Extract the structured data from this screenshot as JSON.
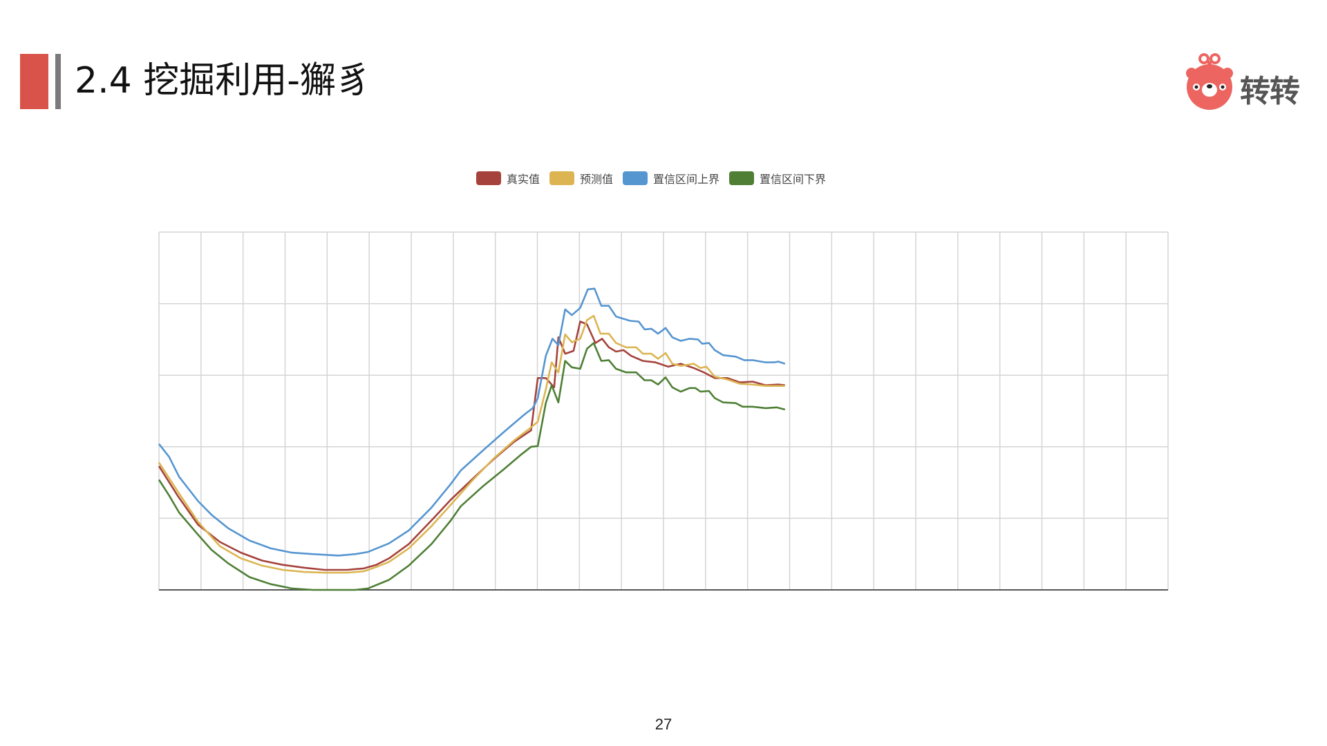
{
  "slide": {
    "title": "2.4 挖掘利用-獬豸",
    "logo_text": "转转",
    "page_number": "27",
    "accent_color": "#d9534a"
  },
  "chart_data": {
    "type": "line",
    "title": "",
    "xlabel": "",
    "ylabel": "",
    "xlim": [
      0,
      24
    ],
    "ylim": [
      0,
      5
    ],
    "grid": true,
    "x_gridlines": 24,
    "y_gridlines": 5,
    "tick_labels_shown": false,
    "legend_position": "top-center",
    "series": [
      {
        "name": "真实值",
        "color": "#a5423b",
        "points": [
          [
            0,
            1.73
          ],
          [
            0.44,
            1.32
          ],
          [
            0.93,
            0.91
          ],
          [
            1.45,
            0.67
          ],
          [
            1.95,
            0.52
          ],
          [
            2.45,
            0.41
          ],
          [
            2.94,
            0.35
          ],
          [
            3.46,
            0.31
          ],
          [
            3.94,
            0.28
          ],
          [
            4.47,
            0.28
          ],
          [
            4.87,
            0.3
          ],
          [
            5.17,
            0.35
          ],
          [
            5.47,
            0.44
          ],
          [
            5.94,
            0.64
          ],
          [
            6.48,
            0.97
          ],
          [
            6.94,
            1.26
          ],
          [
            7.44,
            1.54
          ],
          [
            7.95,
            1.82
          ],
          [
            8.45,
            2.07
          ],
          [
            8.85,
            2.23
          ],
          [
            9.01,
            2.96
          ],
          [
            9.2,
            2.96
          ],
          [
            9.4,
            2.83
          ],
          [
            9.5,
            3.53
          ],
          [
            9.66,
            3.3
          ],
          [
            9.86,
            3.34
          ],
          [
            10.02,
            3.75
          ],
          [
            10.18,
            3.71
          ],
          [
            10.38,
            3.45
          ],
          [
            10.54,
            3.51
          ],
          [
            10.7,
            3.39
          ],
          [
            10.87,
            3.33
          ],
          [
            11.05,
            3.35
          ],
          [
            11.23,
            3.27
          ],
          [
            11.51,
            3.2
          ],
          [
            11.81,
            3.18
          ],
          [
            12.11,
            3.12
          ],
          [
            12.41,
            3.16
          ],
          [
            12.72,
            3.1
          ],
          [
            12.96,
            3.04
          ],
          [
            13.22,
            2.96
          ],
          [
            13.52,
            2.96
          ],
          [
            13.82,
            2.9
          ],
          [
            14.12,
            2.91
          ],
          [
            14.43,
            2.86
          ],
          [
            14.73,
            2.87
          ],
          [
            14.89,
            2.86
          ]
        ]
      },
      {
        "name": "预测值",
        "color": "#dcb552",
        "points": [
          [
            0,
            1.78
          ],
          [
            0.44,
            1.38
          ],
          [
            0.93,
            0.95
          ],
          [
            1.45,
            0.61
          ],
          [
            1.95,
            0.44
          ],
          [
            2.45,
            0.34
          ],
          [
            2.94,
            0.28
          ],
          [
            3.46,
            0.25
          ],
          [
            3.94,
            0.24
          ],
          [
            4.47,
            0.24
          ],
          [
            4.87,
            0.26
          ],
          [
            5.17,
            0.32
          ],
          [
            5.47,
            0.39
          ],
          [
            5.94,
            0.58
          ],
          [
            6.48,
            0.89
          ],
          [
            6.94,
            1.19
          ],
          [
            7.44,
            1.52
          ],
          [
            7.95,
            1.83
          ],
          [
            8.45,
            2.09
          ],
          [
            8.85,
            2.27
          ],
          [
            9.01,
            2.35
          ],
          [
            9.2,
            2.8
          ],
          [
            9.34,
            3.18
          ],
          [
            9.5,
            3.04
          ],
          [
            9.66,
            3.57
          ],
          [
            9.82,
            3.46
          ],
          [
            10.02,
            3.51
          ],
          [
            10.18,
            3.77
          ],
          [
            10.34,
            3.83
          ],
          [
            10.5,
            3.58
          ],
          [
            10.7,
            3.58
          ],
          [
            10.87,
            3.45
          ],
          [
            11.11,
            3.39
          ],
          [
            11.35,
            3.39
          ],
          [
            11.51,
            3.3
          ],
          [
            11.71,
            3.3
          ],
          [
            11.87,
            3.23
          ],
          [
            12.05,
            3.31
          ],
          [
            12.21,
            3.16
          ],
          [
            12.41,
            3.13
          ],
          [
            12.72,
            3.16
          ],
          [
            12.88,
            3.1
          ],
          [
            13.02,
            3.12
          ],
          [
            13.22,
            2.98
          ],
          [
            13.52,
            2.94
          ],
          [
            13.82,
            2.88
          ],
          [
            14.12,
            2.87
          ],
          [
            14.43,
            2.85
          ],
          [
            14.89,
            2.85
          ]
        ]
      },
      {
        "name": "置信区间上界",
        "color": "#5595d0",
        "points": [
          [
            0,
            2.04
          ],
          [
            0.24,
            1.86
          ],
          [
            0.48,
            1.58
          ],
          [
            0.93,
            1.24
          ],
          [
            1.25,
            1.05
          ],
          [
            1.65,
            0.86
          ],
          [
            2.15,
            0.69
          ],
          [
            2.66,
            0.58
          ],
          [
            3.16,
            0.52
          ],
          [
            3.66,
            0.5
          ],
          [
            4.27,
            0.48
          ],
          [
            4.67,
            0.5
          ],
          [
            4.97,
            0.53
          ],
          [
            5.47,
            0.65
          ],
          [
            5.94,
            0.83
          ],
          [
            6.48,
            1.15
          ],
          [
            6.94,
            1.48
          ],
          [
            7.18,
            1.67
          ],
          [
            7.69,
            1.94
          ],
          [
            8.19,
            2.2
          ],
          [
            8.69,
            2.45
          ],
          [
            8.89,
            2.54
          ],
          [
            9.01,
            2.68
          ],
          [
            9.2,
            3.27
          ],
          [
            9.36,
            3.51
          ],
          [
            9.5,
            3.42
          ],
          [
            9.66,
            3.92
          ],
          [
            9.82,
            3.84
          ],
          [
            10.02,
            3.94
          ],
          [
            10.2,
            4.2
          ],
          [
            10.36,
            4.21
          ],
          [
            10.52,
            3.97
          ],
          [
            10.7,
            3.97
          ],
          [
            10.87,
            3.82
          ],
          [
            11.21,
            3.76
          ],
          [
            11.41,
            3.75
          ],
          [
            11.55,
            3.64
          ],
          [
            11.71,
            3.65
          ],
          [
            11.87,
            3.58
          ],
          [
            12.05,
            3.66
          ],
          [
            12.21,
            3.53
          ],
          [
            12.41,
            3.48
          ],
          [
            12.62,
            3.51
          ],
          [
            12.82,
            3.5
          ],
          [
            12.92,
            3.44
          ],
          [
            13.08,
            3.45
          ],
          [
            13.22,
            3.35
          ],
          [
            13.42,
            3.28
          ],
          [
            13.72,
            3.26
          ],
          [
            13.92,
            3.21
          ],
          [
            14.12,
            3.21
          ],
          [
            14.43,
            3.18
          ],
          [
            14.63,
            3.18
          ],
          [
            14.73,
            3.19
          ],
          [
            14.89,
            3.16
          ]
        ]
      },
      {
        "name": "置信区间下界",
        "color": "#4e7f35",
        "points": [
          [
            0,
            1.54
          ],
          [
            0.24,
            1.32
          ],
          [
            0.48,
            1.08
          ],
          [
            0.93,
            0.77
          ],
          [
            1.25,
            0.56
          ],
          [
            1.65,
            0.37
          ],
          [
            2.15,
            0.18
          ],
          [
            2.66,
            0.08
          ],
          [
            3.16,
            0.02
          ],
          [
            3.66,
            0
          ],
          [
            4.27,
            0
          ],
          [
            4.67,
            0
          ],
          [
            4.97,
            0.02
          ],
          [
            5.47,
            0.14
          ],
          [
            5.94,
            0.34
          ],
          [
            6.48,
            0.64
          ],
          [
            6.94,
            0.97
          ],
          [
            7.18,
            1.17
          ],
          [
            7.69,
            1.44
          ],
          [
            8.19,
            1.68
          ],
          [
            8.59,
            1.88
          ],
          [
            8.85,
            2.0
          ],
          [
            9.01,
            2.01
          ],
          [
            9.2,
            2.61
          ],
          [
            9.34,
            2.86
          ],
          [
            9.5,
            2.62
          ],
          [
            9.66,
            3.2
          ],
          [
            9.82,
            3.11
          ],
          [
            10.02,
            3.09
          ],
          [
            10.18,
            3.37
          ],
          [
            10.34,
            3.45
          ],
          [
            10.52,
            3.2
          ],
          [
            10.7,
            3.21
          ],
          [
            10.87,
            3.09
          ],
          [
            11.11,
            3.04
          ],
          [
            11.35,
            3.04
          ],
          [
            11.55,
            2.93
          ],
          [
            11.71,
            2.93
          ],
          [
            11.87,
            2.87
          ],
          [
            12.05,
            2.97
          ],
          [
            12.21,
            2.83
          ],
          [
            12.41,
            2.77
          ],
          [
            12.62,
            2.82
          ],
          [
            12.76,
            2.82
          ],
          [
            12.88,
            2.77
          ],
          [
            13.08,
            2.78
          ],
          [
            13.22,
            2.68
          ],
          [
            13.42,
            2.62
          ],
          [
            13.72,
            2.61
          ],
          [
            13.88,
            2.56
          ],
          [
            14.12,
            2.56
          ],
          [
            14.43,
            2.54
          ],
          [
            14.69,
            2.55
          ],
          [
            14.89,
            2.52
          ]
        ]
      }
    ]
  }
}
